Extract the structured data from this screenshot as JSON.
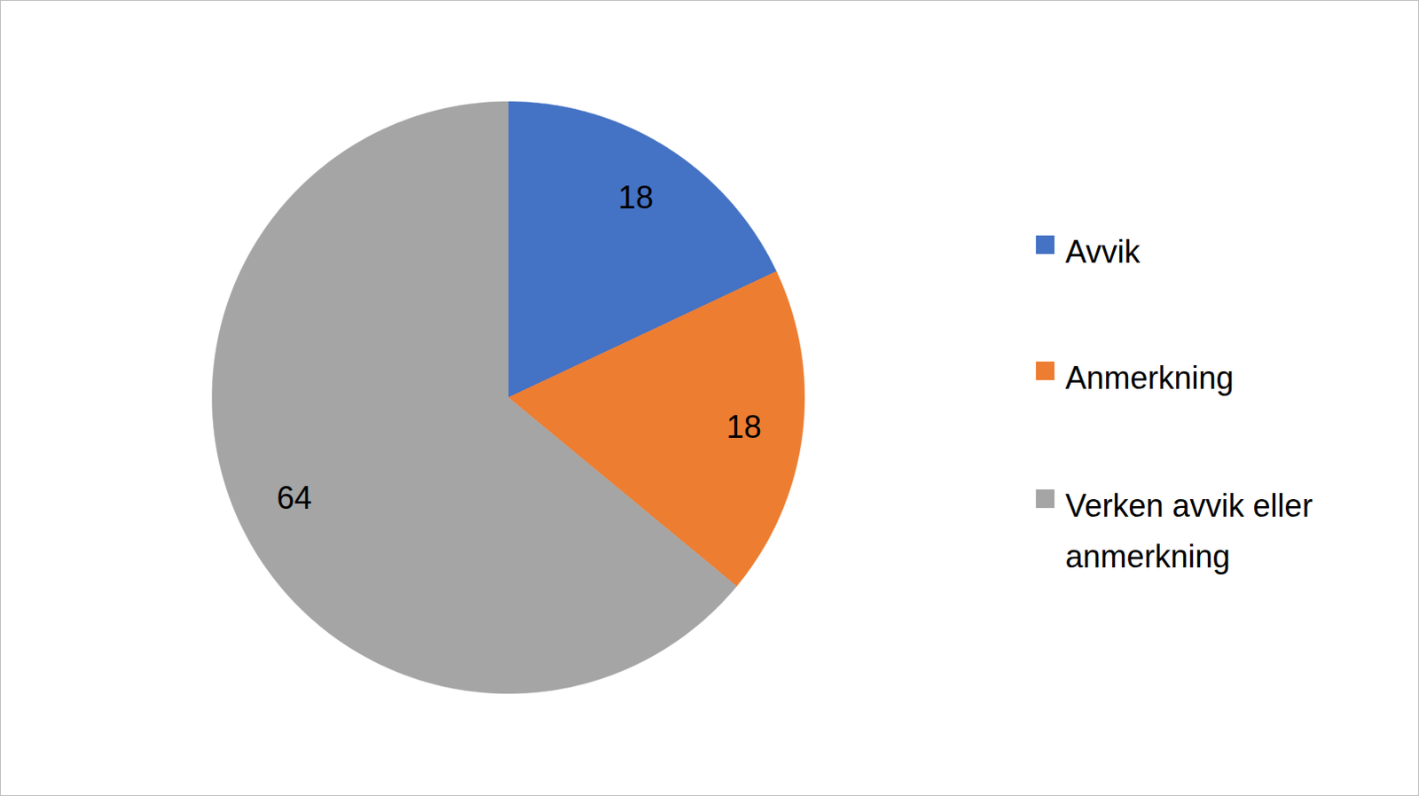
{
  "chart_data": {
    "type": "pie",
    "categories": [
      "Avvik",
      "Anmerkning",
      "Verken avvik eller anmerkning"
    ],
    "values": [
      18,
      18,
      64
    ],
    "colors": [
      "#4472c4",
      "#ed7d31",
      "#a5a5a5"
    ],
    "data_labels": true,
    "legend": "right"
  }
}
